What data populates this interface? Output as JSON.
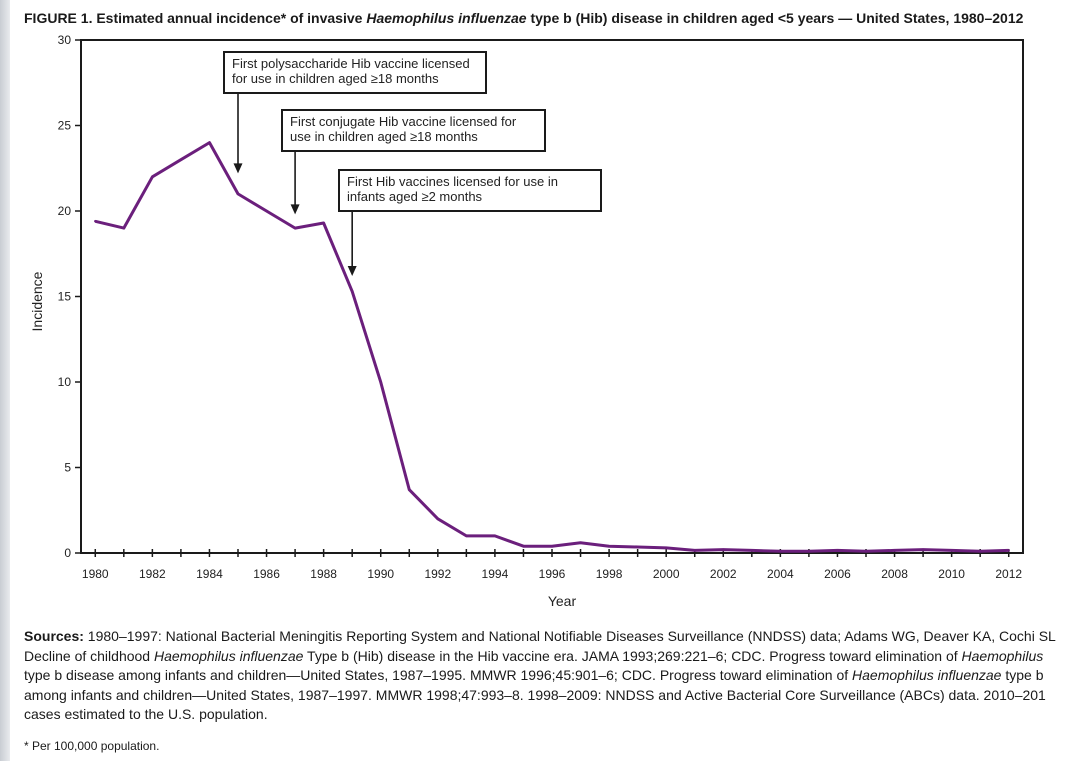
{
  "figure": {
    "title_prefix": "FIGURE 1. Estimated annual incidence* of invasive ",
    "title_italic": "Haemophilus influenzae",
    "title_suffix": " type b (Hib) disease in children aged <5 years — United States, 1980–2012"
  },
  "chart_data": {
    "type": "line",
    "xlabel": "Year",
    "ylabel": "Incidence",
    "xlim": [
      1979.5,
      2012.5
    ],
    "ylim": [
      0,
      30
    ],
    "x_ticks": [
      1980,
      1982,
      1984,
      1986,
      1988,
      1990,
      1992,
      1994,
      1996,
      1998,
      2000,
      2002,
      2004,
      2006,
      2008,
      2010,
      2012
    ],
    "y_ticks": [
      0,
      5,
      10,
      15,
      20,
      25,
      30
    ],
    "grid": false,
    "line_color": "#6b1f7c",
    "series": [
      {
        "x": [
          1980,
          1981,
          1982,
          1983,
          1984,
          1985,
          1986,
          1987,
          1988,
          1989,
          1990,
          1991,
          1992,
          1993,
          1994,
          1995,
          1996,
          1997,
          1998,
          1999,
          2000,
          2001,
          2002,
          2003,
          2004,
          2005,
          2006,
          2007,
          2008,
          2009,
          2010,
          2011,
          2012
        ],
        "values": [
          19.4,
          19.0,
          22.0,
          23.0,
          24.0,
          21.0,
          20.0,
          19.0,
          19.3,
          15.3,
          10.0,
          3.7,
          2.0,
          1.0,
          1.0,
          0.4,
          0.4,
          0.6,
          0.4,
          0.35,
          0.3,
          0.15,
          0.2,
          0.15,
          0.1,
          0.1,
          0.15,
          0.1,
          0.15,
          0.2,
          0.15,
          0.1,
          0.15
        ]
      }
    ],
    "annotations": [
      {
        "lines": [
          "First polysaccharide Hib vaccine licensed",
          "for use in children aged ≥18 months"
        ],
        "arrow_x": 1985,
        "arrow_y": 22.2
      },
      {
        "lines": [
          "First conjugate Hib vaccine licensed for",
          "use in children aged ≥18 months"
        ],
        "arrow_x": 1987,
        "arrow_y": 19.8
      },
      {
        "lines": [
          "First Hib vaccines licensed for use in",
          "infants aged ≥2 months"
        ],
        "arrow_x": 1989,
        "arrow_y": 16.2
      }
    ]
  },
  "sources": {
    "label": "Sources:",
    "line1": " 1980–1997: National Bacterial Meningitis Reporting System and National Notifiable Diseases Surveillance (NNDSS) data; Adams WG, Deaver KA, Cochi SL",
    "line2_a": "Decline of childhood ",
    "line2_i": "Haemophilus influenzae",
    "line2_b": " Type b (Hib) disease in the Hib vaccine era. JAMA 1993;269:221–6; CDC. Progress toward elimination of ",
    "line2_i2": "Haemophilus",
    "line3_a": "type b disease among infants and children—United States, 1987–1995. MMWR 1996;45:901–6; CDC. Progress toward elimination of ",
    "line3_i": "Haemophilus influenzae",
    "line3_b": " type b",
    "line4": "among infants and children—United States, 1987–1997. MMWR 1998;47:993–8. 1998–2009: NNDSS and Active Bacterial Core Surveillance (ABCs) data. 2010–201",
    "line5": "cases estimated to the U.S. population."
  },
  "footnote": "* Per 100,000 population."
}
